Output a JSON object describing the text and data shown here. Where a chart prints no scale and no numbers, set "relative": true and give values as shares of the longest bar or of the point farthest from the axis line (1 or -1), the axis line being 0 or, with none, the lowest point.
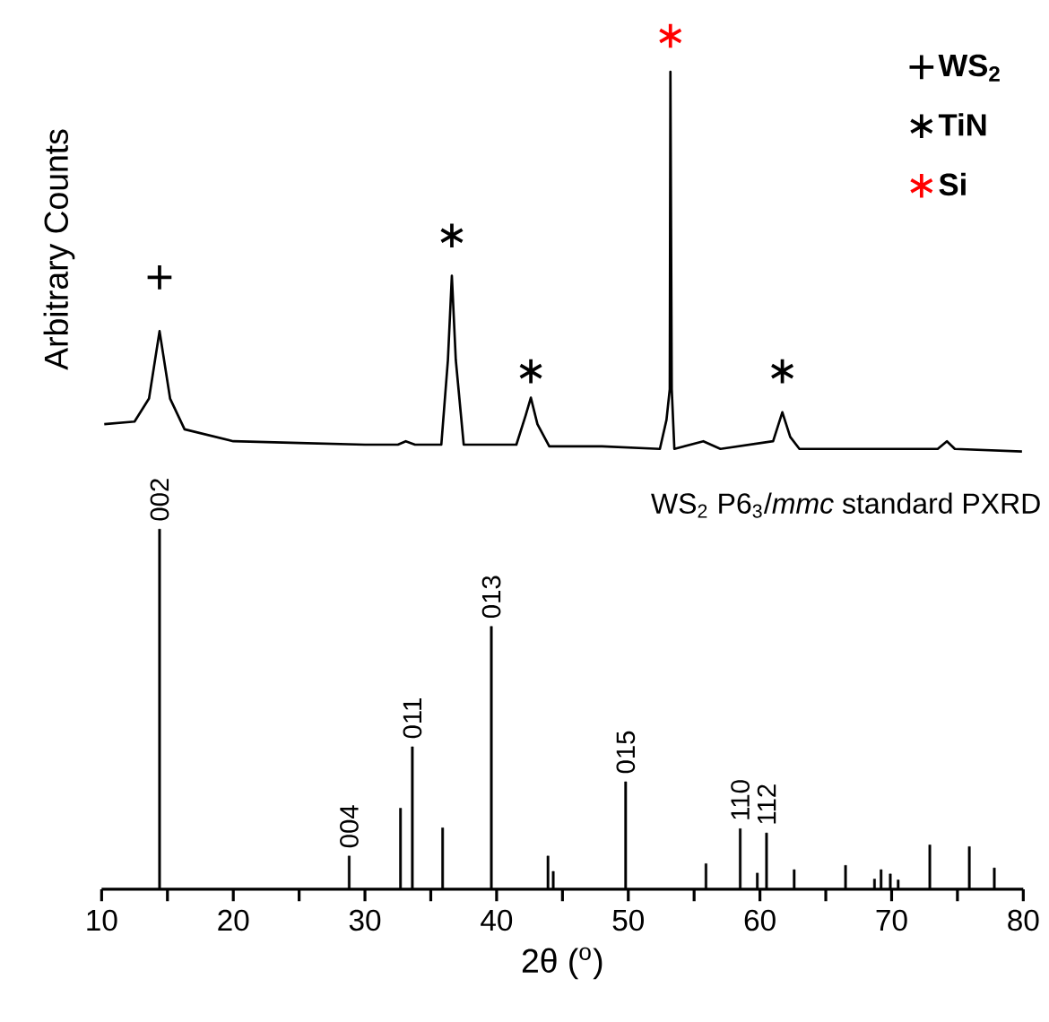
{
  "chart_data": {
    "type": "line",
    "relative": true,
    "xlabel": "2θ ($^{o}$)",
    "ylabel": "Arbitrary Counts",
    "xlim": [
      10,
      80
    ],
    "xticks": [
      10,
      {
        "value": 15,
        "label": null
      },
      20,
      {
        "value": 25,
        "label": null
      },
      30,
      {
        "value": 35,
        "label": null
      },
      40,
      {
        "value": 45,
        "label": null
      },
      50,
      {
        "value": 55,
        "label": null
      },
      60,
      {
        "value": 65,
        "label": null
      },
      70,
      {
        "value": 75,
        "label": null
      },
      80
    ],
    "legend": "top right",
    "series": [
      {
        "name": "WS$_{2}$",
        "type": "scatter",
        "color": "#000000",
        "x": [
          14.4
        ],
        "values": [
          0.717
        ]
      },
      {
        "name": "TiN",
        "type": "scatter",
        "marker": "cross",
        "color": "#000000",
        "x": [
          36.6,
          42.6,
          61.7
        ],
        "values": [
          0.766,
          0.607,
          0.607
        ]
      },
      {
        "name": "Si",
        "type": "scatter",
        "marker": "cross",
        "color": "#ff0000",
        "x": [
          53.2
        ],
        "values": [
          1.0
        ]
      },
      {
        "color": "#000000",
        "x": [
          10.2,
          12.5,
          13.6,
          14.4,
          15.2,
          16.3,
          20,
          25,
          30,
          32.5,
          33.1,
          33.8,
          35.8,
          36.3,
          36.6,
          36.9,
          37.5,
          41.5,
          42.2,
          42.6,
          43.1,
          44,
          48,
          52.4,
          52.9,
          53.15,
          53.2,
          53.3,
          53.5,
          55.7,
          57,
          61.0,
          61.7,
          62.3,
          63,
          73.5,
          74.2,
          74.8,
          79.9
        ],
        "values": [
          0.545,
          0.548,
          0.575,
          0.654,
          0.575,
          0.539,
          0.525,
          0.523,
          0.521,
          0.521,
          0.525,
          0.521,
          0.521,
          0.62,
          0.719,
          0.62,
          0.521,
          0.521,
          0.555,
          0.576,
          0.545,
          0.519,
          0.519,
          0.516,
          0.55,
          0.586,
          0.958,
          0.586,
          0.516,
          0.525,
          0.516,
          0.525,
          0.559,
          0.53,
          0.516,
          0.516,
          0.525,
          0.516,
          0.513
        ]
      },
      {
        "type": "bar",
        "color": "#000000",
        "x": [
          14.4,
          28.8,
          32.7,
          33.6,
          35.9,
          39.6,
          43.9,
          44.3,
          49.8,
          55.9,
          58.5,
          59.8,
          60.5,
          62.6,
          66.5,
          68.7,
          69.2,
          69.9,
          70.5,
          72.9,
          75.9,
          77.8
        ],
        "values": [
          0.422,
          0.039,
          0.095,
          0.167,
          0.072,
          0.308,
          0.039,
          0.021,
          0.126,
          0.03,
          0.071,
          0.019,
          0.066,
          0.023,
          0.028,
          0.012,
          0.023,
          0.018,
          0.011,
          0.052,
          0.05,
          0.025
        ]
      }
    ],
    "annotations": [
      {
        "text": "002",
        "x": 14.4,
        "y": 0.422
      },
      {
        "text": "004",
        "x": 28.8,
        "y": 0.039
      },
      {
        "text": "011",
        "x": 33.6,
        "y": 0.167
      },
      {
        "text": "013",
        "x": 39.6,
        "y": 0.308
      },
      {
        "text": "015",
        "x": 49.8,
        "y": 0.126
      },
      {
        "text": "110",
        "x": 58.5,
        "y": 0.071
      },
      {
        "text": "112",
        "x": 60.5,
        "y": 0.066
      },
      "WS$_{2}$ P6$_{3}$/*mmc* standard PXRD"
    ]
  }
}
